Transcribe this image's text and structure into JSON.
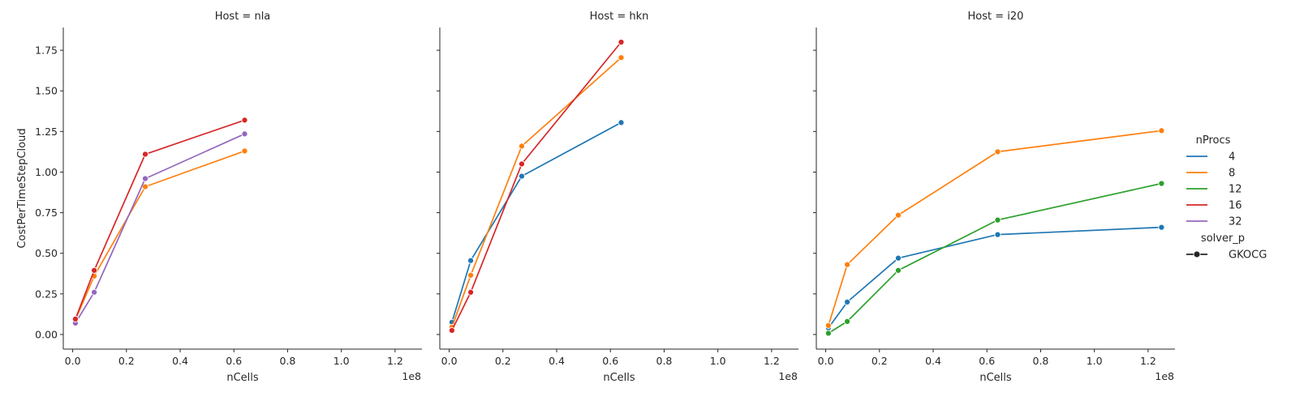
{
  "chart_data": {
    "type": "line",
    "facet_variable": "Host",
    "xlabel": "nCells",
    "ylabel": "CostPerTimeStepCloud",
    "x_offset_label": "1e8",
    "x_scale": 100000000,
    "xlim": [
      -3500000,
      130000000
    ],
    "ylim": [
      -0.09,
      1.89
    ],
    "x_ticks": [
      0,
      0.2,
      0.4,
      0.6,
      0.8,
      1.0,
      1.2
    ],
    "x_tick_labels": [
      "0.0",
      "0.2",
      "0.4",
      "0.6",
      "0.8",
      "1.0",
      "1.2"
    ],
    "y_ticks": [
      0,
      0.25,
      0.5,
      0.75,
      1.0,
      1.25,
      1.5,
      1.75
    ],
    "y_tick_labels": [
      "0.00",
      "0.25",
      "0.50",
      "0.75",
      "1.00",
      "1.25",
      "1.50",
      "1.75"
    ],
    "grid": false,
    "legend": {
      "placement": "right",
      "hue_title": "nProcs",
      "style_title": "solver_p",
      "hue_entries": [
        {
          "label": "4",
          "color": "#1f77b4"
        },
        {
          "label": "8",
          "color": "#ff7f0e"
        },
        {
          "label": "12",
          "color": "#2ca02c"
        },
        {
          "label": "16",
          "color": "#d62728"
        },
        {
          "label": "32",
          "color": "#9467bd"
        }
      ],
      "style_entries": [
        {
          "label": "GKOCG",
          "marker": "circle"
        }
      ]
    },
    "panels": [
      {
        "title": "Host = nla",
        "series": [
          {
            "nProcs": "8",
            "color": "#ff7f0e",
            "x": [
              1000000,
              8000000,
              27000000,
              64000000
            ],
            "y": [
              0.09,
              0.36,
              0.91,
              1.13
            ]
          },
          {
            "nProcs": "32",
            "color": "#9467bd",
            "x": [
              1000000,
              8000000,
              27000000,
              64000000
            ],
            "y": [
              0.07,
              0.26,
              0.96,
              1.235
            ]
          },
          {
            "nProcs": "16",
            "color": "#d62728",
            "x": [
              1000000,
              8000000,
              27000000,
              64000000
            ],
            "y": [
              0.095,
              0.395,
              1.11,
              1.32
            ]
          }
        ]
      },
      {
        "title": "Host = hkn",
        "series": [
          {
            "nProcs": "4",
            "color": "#1f77b4",
            "x": [
              1000000,
              8000000,
              27000000,
              64000000
            ],
            "y": [
              0.075,
              0.455,
              0.975,
              1.305
            ]
          },
          {
            "nProcs": "8",
            "color": "#ff7f0e",
            "x": [
              1000000,
              8000000,
              27000000,
              64000000
            ],
            "y": [
              0.045,
              0.365,
              1.16,
              1.705
            ]
          },
          {
            "nProcs": "16",
            "color": "#d62728",
            "x": [
              1000000,
              8000000,
              27000000,
              64000000
            ],
            "y": [
              0.025,
              0.26,
              1.05,
              1.8
            ]
          }
        ]
      },
      {
        "title": "Host = i20",
        "series": [
          {
            "nProcs": "4",
            "color": "#1f77b4",
            "x": [
              1000000,
              8000000,
              27000000,
              64000000,
              125000000
            ],
            "y": [
              0.04,
              0.2,
              0.47,
              0.615,
              0.66
            ]
          },
          {
            "nProcs": "8",
            "color": "#ff7f0e",
            "x": [
              1000000,
              8000000,
              27000000,
              64000000,
              125000000
            ],
            "y": [
              0.055,
              0.43,
              0.735,
              1.125,
              1.255
            ]
          },
          {
            "nProcs": "12",
            "color": "#2ca02c",
            "x": [
              1000000,
              8000000,
              27000000,
              64000000,
              125000000
            ],
            "y": [
              0.008,
              0.08,
              0.395,
              0.705,
              0.93
            ]
          }
        ]
      }
    ]
  }
}
